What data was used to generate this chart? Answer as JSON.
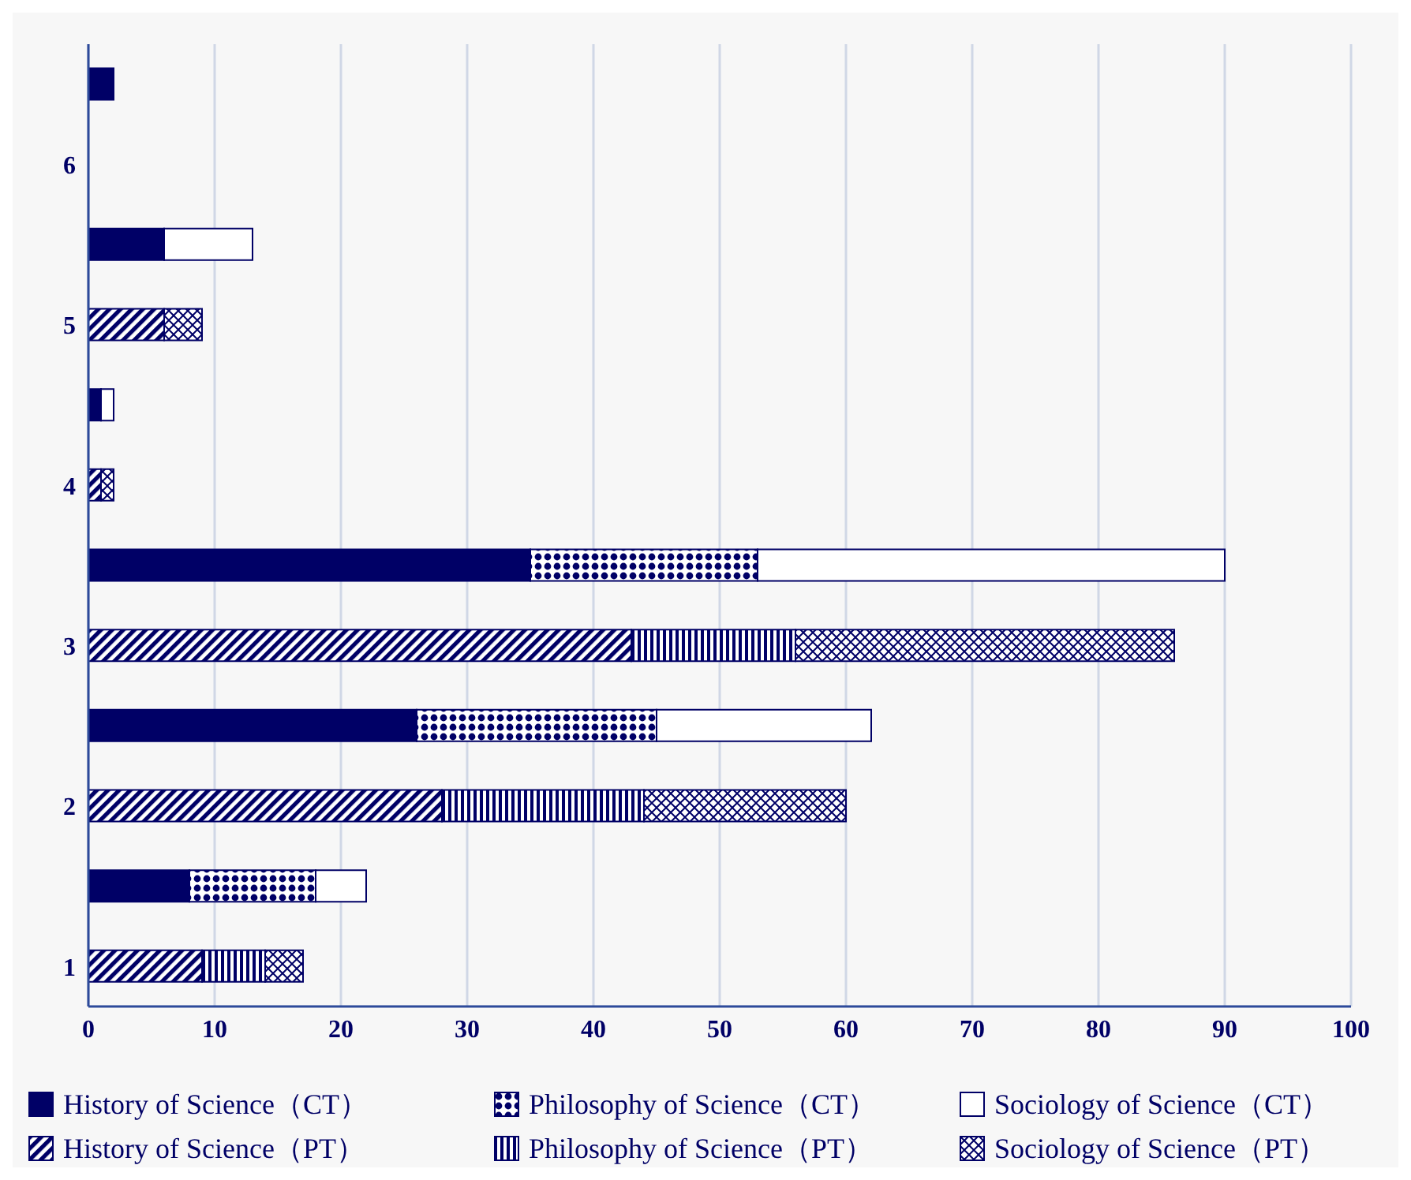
{
  "chart_data": {
    "type": "bar",
    "orientation": "horizontal",
    "stacked": true,
    "categories": [
      null,
      "6",
      null,
      "5",
      null,
      "4",
      null,
      "3",
      null,
      "2",
      null,
      "1"
    ],
    "series": [
      {
        "name": "History of Science（CT）",
        "color": "#000066",
        "values": [
          2,
          null,
          6,
          null,
          1,
          null,
          35,
          null,
          26,
          null,
          8,
          null
        ]
      },
      {
        "name": "Philosophy of Science（CT）",
        "color": "#000066",
        "values": [
          0,
          null,
          0,
          null,
          0,
          null,
          18,
          null,
          19,
          null,
          10,
          null
        ]
      },
      {
        "name": "Sociology of Science（CT）",
        "color": "#ffffff",
        "values": [
          0,
          null,
          7,
          null,
          1,
          null,
          37,
          null,
          17,
          null,
          4,
          null
        ]
      },
      {
        "name": "History of Science（PT）",
        "color": "#000066",
        "values": [
          null,
          0,
          null,
          6,
          null,
          1,
          null,
          43,
          null,
          28,
          null,
          9
        ]
      },
      {
        "name": "Philosophy of Science（PT）",
        "color": "#000066",
        "values": [
          null,
          0,
          null,
          0,
          null,
          0,
          null,
          13,
          null,
          16,
          null,
          5
        ]
      },
      {
        "name": "Sociology of Science（PT）",
        "color": "#000066",
        "values": [
          null,
          0,
          null,
          3,
          null,
          1,
          null,
          30,
          null,
          16,
          null,
          3
        ]
      }
    ],
    "xlim": [
      0,
      100
    ],
    "xticks": [
      0,
      10,
      20,
      30,
      40,
      50,
      60,
      70,
      80,
      90,
      100
    ],
    "grid": "x",
    "legend": "bottom"
  }
}
